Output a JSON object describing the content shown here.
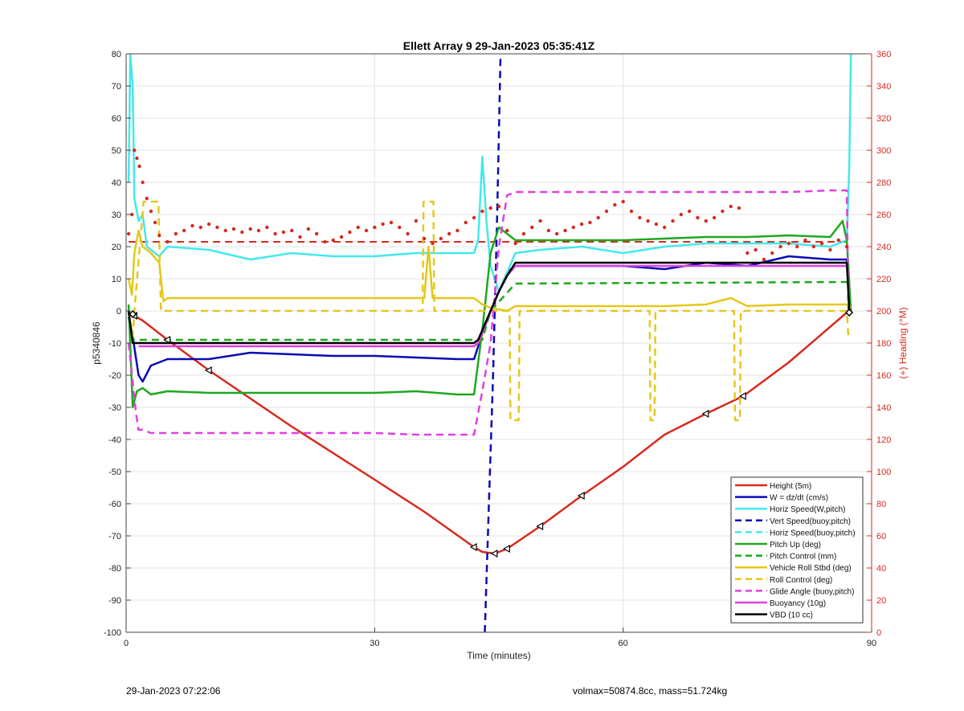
{
  "footer": {
    "timestamp": "29-Jan-2023 07:22:06",
    "stats": "volmax=50874.8cc, mass=51.724kg"
  },
  "chart_data": {
    "type": "line",
    "title": "Ellett Array 9 29-Jan-2023 05:35:41Z",
    "xlabel": "Time (minutes)",
    "ylabel": "p5340846",
    "y2label": "(+) Heading (°M)",
    "xlim": [
      0,
      90
    ],
    "ylim": [
      -100,
      80
    ],
    "y2lim": [
      0,
      360
    ],
    "xticks": [
      0,
      30,
      60,
      90
    ],
    "yticks": [
      -100,
      -90,
      -80,
      -70,
      -60,
      -50,
      -40,
      -30,
      -20,
      -10,
      0,
      10,
      20,
      30,
      40,
      50,
      60,
      70,
      80
    ],
    "y2ticks": [
      0,
      20,
      40,
      60,
      80,
      100,
      120,
      140,
      160,
      180,
      200,
      220,
      240,
      260,
      280,
      300,
      320,
      340,
      360
    ],
    "grid": true,
    "legend_position": "bottom-right",
    "colors": {
      "red": "#d62a1e",
      "blue": "#0a0ab4",
      "cyan": "#44e8ec",
      "green": "#1fa81f",
      "yellow": "#e4c81c",
      "magenta": "#e040e0",
      "black": "#000000",
      "heading_axis": "#d62a1e"
    },
    "series": [
      {
        "name": "Height (5m)",
        "color": "#d62a1e",
        "style": "solid",
        "x": [
          0.5,
          1,
          2,
          5,
          10,
          20,
          30,
          36,
          42,
          43,
          44.5,
          46,
          50,
          55,
          60,
          65,
          70,
          74.5,
          80,
          87
        ],
        "y": [
          -1,
          -1.5,
          -3,
          -9,
          -18.5,
          -36,
          -52.5,
          -62.5,
          -73.5,
          -75,
          -75.5,
          -74,
          -67,
          -57.5,
          -48.5,
          -38.5,
          -32,
          -26.5,
          -16,
          -0.5
        ]
      },
      {
        "name": "W = dz/dt (cm/s)",
        "color": "#0a0ab4",
        "style": "solid",
        "x": [
          0.3,
          0.8,
          1.5,
          2,
          3,
          5,
          10,
          15,
          20,
          25,
          30,
          35,
          40,
          42,
          43,
          44,
          45,
          46,
          47,
          50,
          55,
          60,
          65,
          70,
          75,
          80,
          85,
          87,
          87.5
        ],
        "y": [
          -2,
          -8,
          -20,
          -22,
          -17,
          -15,
          -15,
          -13,
          -13.5,
          -14,
          -14,
          -14.5,
          -15,
          -15,
          -7,
          0,
          6,
          12,
          14,
          14,
          14,
          14,
          13,
          15,
          14,
          17,
          16,
          16,
          0
        ]
      },
      {
        "name": "Horiz Speed(W,pitch)",
        "color": "#44e8ec",
        "style": "solid",
        "x": [
          0.3,
          0.5,
          0.8,
          1,
          1.5,
          2,
          2.5,
          3,
          4,
          5,
          10,
          15,
          20,
          25,
          30,
          35,
          40,
          42,
          42.5,
          43,
          43.5,
          44,
          45,
          46,
          47,
          50,
          55,
          60,
          65,
          70,
          75,
          80,
          85,
          87,
          87.3,
          87.5
        ],
        "y": [
          40,
          80,
          70,
          35,
          28,
          30,
          20,
          19,
          17,
          20,
          19,
          16,
          18,
          17,
          17,
          18,
          18,
          18,
          22,
          48,
          28,
          14,
          6,
          12,
          18,
          19,
          20,
          18,
          20,
          21,
          21,
          21,
          20,
          22,
          45,
          80
        ]
      },
      {
        "name": "Vert Speed(buoy,pitch)",
        "color": "#0a0ab4",
        "style": "dashed",
        "x": [
          43.3,
          43.8,
          44.3,
          44.8,
          45.2
        ],
        "y": [
          -100,
          -60,
          -20,
          30,
          80
        ]
      },
      {
        "name": "Horiz Speed(buoy,pitch)",
        "color": "#44e8ec",
        "style": "dashed",
        "x": [],
        "y": []
      },
      {
        "name": "Pitch Up (deg)",
        "color": "#1fa81f",
        "style": "solid",
        "x": [
          0.3,
          0.8,
          1.3,
          2,
          3,
          5,
          10,
          20,
          30,
          35,
          40,
          42,
          43,
          44,
          45,
          46,
          47,
          50,
          55,
          60,
          65,
          70,
          75,
          80,
          85,
          86.5,
          87,
          87.5
        ],
        "y": [
          2,
          -30,
          -25,
          -24,
          -26,
          -25,
          -25.5,
          -25.5,
          -25.5,
          -25,
          -26,
          -26,
          -6,
          18,
          26,
          24,
          22,
          22,
          22,
          22,
          22.5,
          23,
          23,
          23.5,
          23,
          28,
          22,
          0
        ]
      },
      {
        "name": "Pitch Control (mm)",
        "color": "#1fa81f",
        "style": "dashed",
        "x": [
          0.3,
          0.8,
          42,
          43,
          44,
          47,
          87,
          87.5
        ],
        "y": [
          0,
          -9,
          -9,
          -9,
          0,
          8.5,
          9,
          9
        ]
      },
      {
        "name": "Vehicle Roll Stbd (deg)",
        "color": "#e4c81c",
        "style": "solid",
        "x": [
          0.3,
          0.7,
          1,
          1.5,
          2,
          3,
          4,
          4.5,
          5,
          10,
          20,
          30,
          36,
          36.5,
          37,
          42,
          43,
          44,
          46,
          47,
          50,
          55,
          60,
          62,
          65,
          70,
          73,
          75,
          80,
          85,
          87,
          87.5
        ],
        "y": [
          10,
          5,
          18,
          25,
          20,
          18,
          15,
          3,
          4,
          4,
          4,
          4,
          4,
          20,
          4,
          4,
          2,
          1,
          0,
          1.5,
          1.5,
          1.5,
          1.5,
          1.5,
          1.5,
          2,
          4,
          1.5,
          2,
          2,
          2,
          1
        ]
      },
      {
        "name": "Roll Control (deg)",
        "color": "#e4c81c",
        "style": "dashed",
        "x": [
          0.3,
          0.8,
          1,
          2.1,
          2.2,
          3.8,
          3.9,
          4.2,
          5,
          10,
          20,
          30,
          35.8,
          35.9,
          37.1,
          37.2,
          40,
          44,
          46.3,
          46.4,
          47.4,
          47.5,
          50,
          60,
          63.2,
          63.3,
          63.8,
          63.9,
          70,
          73.4,
          73.5,
          74.1,
          74.2,
          80,
          87,
          87.2
        ],
        "y": [
          0,
          -8,
          0,
          34,
          34,
          34,
          34,
          0,
          0,
          0,
          0,
          0,
          0,
          34,
          34,
          0,
          0,
          0,
          0,
          -34,
          -34,
          0,
          0,
          0,
          0,
          -34,
          -34,
          0,
          0,
          0,
          -34,
          -34,
          0,
          0,
          0,
          -8
        ]
      },
      {
        "name": "Glide Angle (buoy,pitch)",
        "color": "#e040e0",
        "style": "dashed",
        "x": [
          0.3,
          1.2,
          1.5,
          2,
          3,
          5,
          10,
          20,
          30,
          35,
          40,
          42,
          43,
          44,
          45,
          46,
          47,
          50,
          55,
          60,
          65,
          70,
          75,
          80,
          85,
          87,
          87.2
        ],
        "y": [
          -10,
          -32,
          -37,
          -37,
          -38,
          -38,
          -38,
          -38,
          -38,
          -38.5,
          -38.5,
          -38.5,
          -25,
          -10,
          20,
          36,
          37,
          37,
          37,
          37,
          37,
          37,
          37,
          37,
          37.5,
          37.5,
          0
        ]
      },
      {
        "name": "Buoyancy (10g)",
        "color": "#e040e0",
        "style": "solid",
        "x": [
          1.5,
          42,
          42.5,
          43,
          44,
          45,
          46,
          47,
          87
        ],
        "y": [
          -11,
          -11,
          -10,
          -7,
          0,
          6,
          11,
          14,
          14
        ]
      },
      {
        "name": "VBD (10 cc)",
        "color": "#000000",
        "style": "solid",
        "x": [
          0.3,
          0.8,
          42,
          42.5,
          43,
          44,
          45,
          46,
          47,
          87,
          87.3
        ],
        "y": [
          0,
          -10,
          -10,
          -9,
          -6,
          0,
          6,
          11,
          15,
          15,
          0
        ]
      }
    ],
    "heading_data": {
      "axis": "right",
      "color": "#d62a1e",
      "mean_line_value": 243,
      "x": [
        0.3,
        0.7,
        1,
        1.3,
        1.6,
        2,
        2.5,
        3,
        3.5,
        4,
        5,
        6,
        7,
        8,
        9,
        10,
        11,
        12,
        13,
        14,
        15,
        16,
        17,
        18,
        19,
        20,
        21,
        22,
        23,
        24,
        25,
        26,
        27,
        28,
        29,
        30,
        31,
        32,
        33,
        34,
        35,
        36,
        37,
        38,
        39,
        40,
        41,
        42,
        43,
        44,
        45,
        46,
        47,
        48,
        49,
        50,
        51,
        52,
        53,
        54,
        55,
        56,
        57,
        58,
        59,
        60,
        61,
        62,
        63,
        64,
        65,
        66,
        67,
        68,
        69,
        70,
        71,
        72,
        73,
        74,
        75,
        76,
        77,
        78,
        79,
        80,
        81,
        82,
        83,
        84,
        85,
        86,
        87
      ],
      "y": [
        248,
        260,
        300,
        295,
        290,
        280,
        270,
        262,
        255,
        247,
        243,
        248,
        250,
        253,
        252,
        254,
        252,
        250,
        251,
        249,
        251,
        250,
        252,
        248,
        249,
        250,
        246,
        251,
        248,
        243,
        244,
        246,
        249,
        252,
        250,
        252,
        254,
        255,
        252,
        248,
        256,
        245,
        242,
        245,
        248,
        250,
        255,
        258,
        262,
        264,
        265,
        250,
        242,
        248,
        252,
        256,
        250,
        248,
        250,
        252,
        254,
        255,
        258,
        262,
        266,
        268,
        262,
        258,
        256,
        254,
        252,
        256,
        260,
        262,
        258,
        256,
        258,
        262,
        265,
        264,
        236,
        238,
        232,
        236,
        240,
        242,
        240,
        244,
        240,
        242,
        238,
        244,
        240
      ]
    }
  }
}
